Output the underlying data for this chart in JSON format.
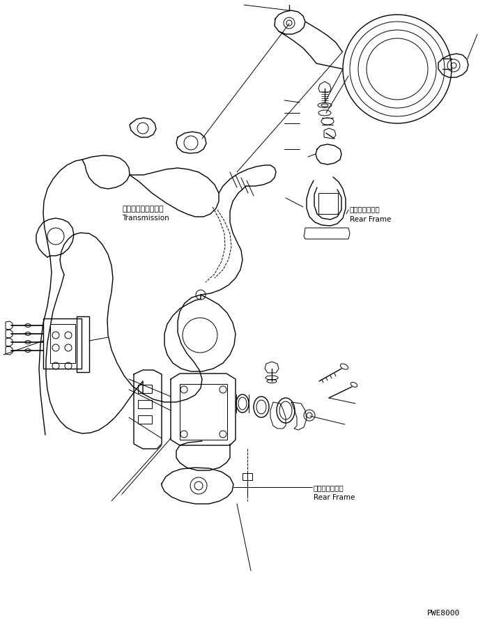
{
  "bg_color": "#ffffff",
  "line_color": "#000000",
  "fig_width": 6.96,
  "fig_height": 8.95,
  "dpi": 100,
  "watermark": "PWE8000",
  "label_transmission_jp": "トランスミッション",
  "label_transmission_en": "Transmission",
  "label_rear_frame_jp": "リヤーフレーム",
  "label_rear_frame_en": "Rear Frame"
}
